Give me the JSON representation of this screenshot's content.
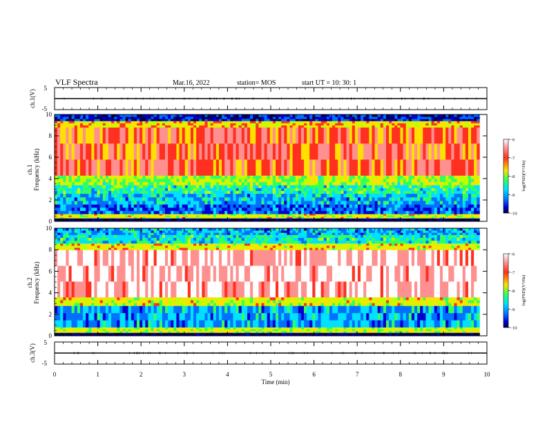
{
  "header": {
    "title": "VLF Spectra",
    "date": "Mar.16, 2022",
    "station": "station= MOS",
    "start": "start  UT  =   10: 30: 1"
  },
  "colors": {
    "spectrogram_scale": [
      "#00004a",
      "#0000d0",
      "#0070ff",
      "#00e0ff",
      "#30ff60",
      "#c0ff00",
      "#ffe000",
      "#ff3020",
      "#ff9090",
      "#ffffff"
    ]
  },
  "chart_data": [
    {
      "type": "line",
      "name": "waveform-ch1",
      "ylabel": "ch.1(V)",
      "ylim": [
        -5,
        5
      ],
      "yticks": [
        "5",
        "-5"
      ],
      "xlim": [
        0,
        10
      ],
      "x": [
        0,
        10
      ],
      "values": [
        0,
        0
      ]
    },
    {
      "type": "heatmap",
      "name": "spectrogram-ch1",
      "ylabel_channel": "ch.1",
      "ylabel": "Frequency  (kHz)",
      "ylim": [
        0,
        10
      ],
      "yticks": [
        "0",
        "2",
        "4",
        "6",
        "8",
        "10"
      ],
      "xlim": [
        0,
        10
      ],
      "colorbar_label": "log(PSD)(V²/Hz)",
      "colorbar_ticks": [
        "-6",
        "-7",
        "-8",
        "-9",
        "-10"
      ],
      "colorbar_range": [
        -10,
        -6
      ],
      "bands_khz": [
        {
          "from": 0.0,
          "to": 0.3,
          "level": -10
        },
        {
          "from": 0.3,
          "to": 0.7,
          "level": -7.6
        },
        {
          "from": 0.7,
          "to": 1.6,
          "level": -9.2
        },
        {
          "from": 1.6,
          "to": 2.6,
          "level": -8.8
        },
        {
          "from": 2.6,
          "to": 3.4,
          "level": -8.4
        },
        {
          "from": 3.4,
          "to": 4.3,
          "level": -7.9
        },
        {
          "from": 4.3,
          "to": 8.8,
          "level": -6.8
        },
        {
          "from": 8.8,
          "to": 9.4,
          "level": -7.4
        },
        {
          "from": 9.4,
          "to": 10.0,
          "level": -9.5
        }
      ],
      "end_min": 9.83
    },
    {
      "type": "heatmap",
      "name": "spectrogram-ch2",
      "ylabel_channel": "ch.2",
      "ylabel": "Frequency  (kHz)",
      "ylim": [
        0,
        10
      ],
      "yticks": [
        "0",
        "2",
        "4",
        "6",
        "8",
        "10"
      ],
      "xlim": [
        0,
        10
      ],
      "colorbar_label": "log(PSD)(V²/Hz)",
      "colorbar_ticks": [
        "-6",
        "-7",
        "-8",
        "-9",
        "-10"
      ],
      "colorbar_range": [
        -10,
        -6
      ],
      "bands_khz": [
        {
          "from": 0.0,
          "to": 0.3,
          "level": -10
        },
        {
          "from": 0.3,
          "to": 0.8,
          "level": -7.7
        },
        {
          "from": 0.8,
          "to": 2.8,
          "level": -8.9
        },
        {
          "from": 2.8,
          "to": 3.6,
          "level": -7.6
        },
        {
          "from": 3.6,
          "to": 8.0,
          "level": -6.2
        },
        {
          "from": 8.0,
          "to": 8.6,
          "level": -7.5
        },
        {
          "from": 8.6,
          "to": 9.4,
          "level": -8.5
        },
        {
          "from": 9.4,
          "to": 10.0,
          "level": -8.9
        }
      ],
      "end_min": 9.83
    },
    {
      "type": "line",
      "name": "waveform-ch3",
      "ylabel": "ch.3(V)",
      "ylim": [
        -5,
        5
      ],
      "yticks": [
        "5",
        "-5"
      ],
      "xlabel": "Time  (min)",
      "xlim": [
        0,
        10
      ],
      "xticks": [
        "0",
        "1",
        "2",
        "3",
        "4",
        "5",
        "6",
        "7",
        "8",
        "9",
        "10"
      ],
      "x": [
        0,
        10
      ],
      "values": [
        0,
        0
      ]
    }
  ]
}
